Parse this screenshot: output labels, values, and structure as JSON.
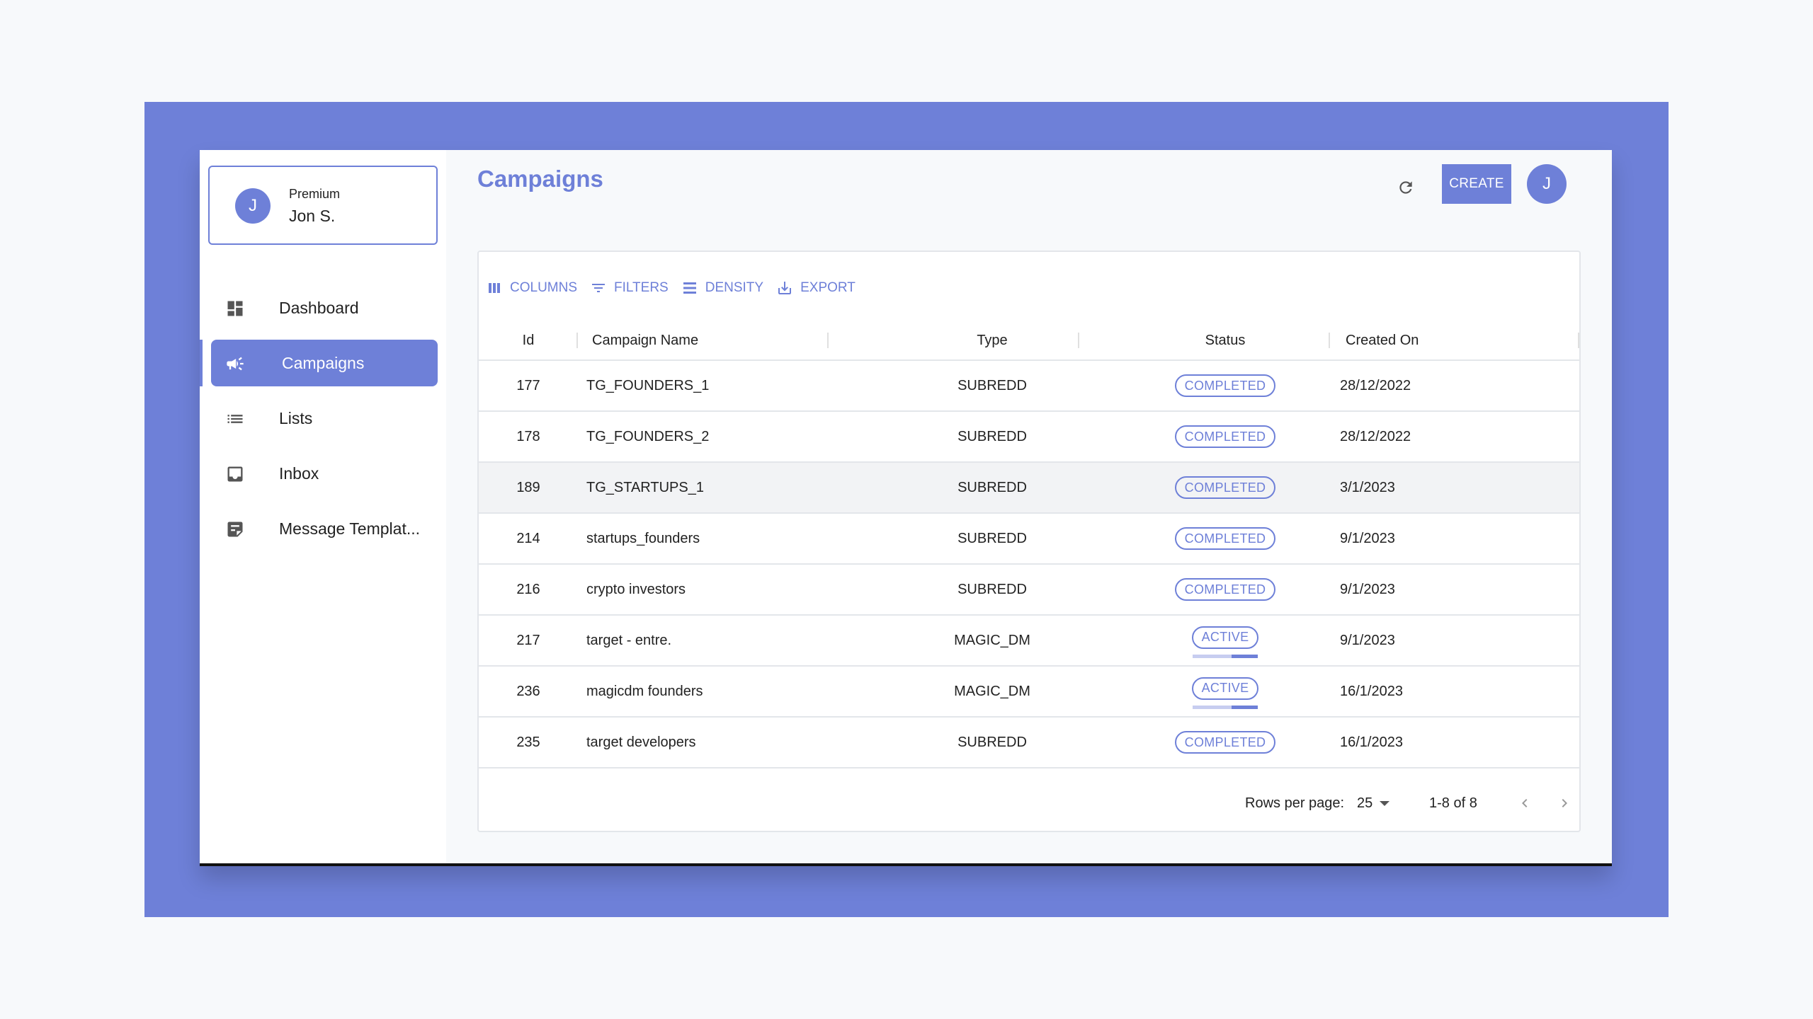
{
  "colors": {
    "accent": "#6e80d8",
    "frame": "#6e80d8",
    "background": "#f7f9fb"
  },
  "user": {
    "initial": "J",
    "plan": "Premium",
    "name": "Jon S."
  },
  "nav": {
    "items": [
      {
        "label": "Dashboard",
        "icon": "dashboard-icon",
        "active": false
      },
      {
        "label": "Campaigns",
        "icon": "megaphone-icon",
        "active": true
      },
      {
        "label": "Lists",
        "icon": "list-icon",
        "active": false
      },
      {
        "label": "Inbox",
        "icon": "inbox-icon",
        "active": false
      },
      {
        "label": "Message Templat...",
        "icon": "note-icon",
        "active": false
      }
    ]
  },
  "header": {
    "title": "Campaigns",
    "create_label": "CREATE",
    "avatar_initial": "J",
    "refresh_icon": "refresh-icon"
  },
  "toolbar": {
    "columns": "COLUMNS",
    "filters": "FILTERS",
    "density": "DENSITY",
    "export": "EXPORT"
  },
  "table": {
    "columns": [
      "Id",
      "Campaign Name",
      "Type",
      "Status",
      "Created On"
    ],
    "rows": [
      {
        "id": "177",
        "name": "TG_FOUNDERS_1",
        "type": "SUBREDD",
        "status": "COMPLETED",
        "created": "28/12/2022"
      },
      {
        "id": "178",
        "name": "TG_FOUNDERS_2",
        "type": "SUBREDD",
        "status": "COMPLETED",
        "created": "28/12/2022"
      },
      {
        "id": "189",
        "name": "TG_STARTUPS_1",
        "type": "SUBREDD",
        "status": "COMPLETED",
        "created": "3/1/2023"
      },
      {
        "id": "214",
        "name": "startups_founders",
        "type": "SUBREDD",
        "status": "COMPLETED",
        "created": "9/1/2023"
      },
      {
        "id": "216",
        "name": "crypto investors",
        "type": "SUBREDD",
        "status": "COMPLETED",
        "created": "9/1/2023"
      },
      {
        "id": "217",
        "name": "target - entre.",
        "type": "MAGIC_DM",
        "status": "ACTIVE",
        "created": "9/1/2023",
        "progress": 0.4
      },
      {
        "id": "236",
        "name": "magicdm founders",
        "type": "MAGIC_DM",
        "status": "ACTIVE",
        "created": "16/1/2023",
        "progress": 0.4
      },
      {
        "id": "235",
        "name": "target developers",
        "type": "SUBREDD",
        "status": "COMPLETED",
        "created": "16/1/2023"
      }
    ]
  },
  "pagination": {
    "rows_per_page_label": "Rows per page:",
    "rows_per_page": "25",
    "range": "1-8 of 8"
  }
}
